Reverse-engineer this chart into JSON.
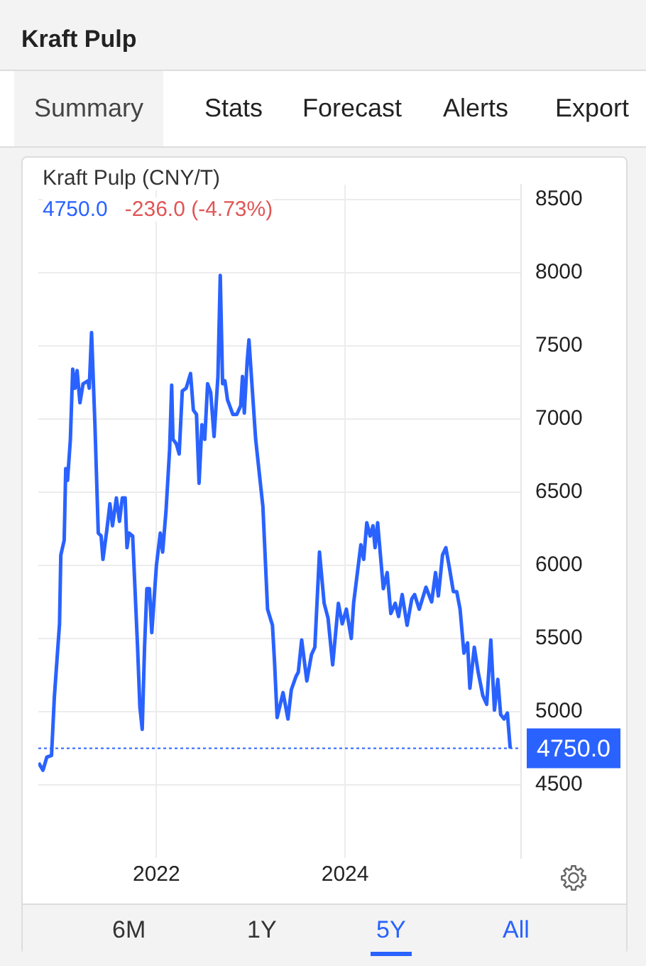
{
  "chart_data": {
    "type": "line",
    "title": "Kraft Pulp (CNY/T)",
    "subtitle": "4750.0 -236.0 (-4.73%)",
    "annotations": [
      "Kraft Pulp",
      "Summary",
      "Stats",
      "Forecast",
      "Alerts",
      "Export",
      "6M",
      "1Y",
      "5Y",
      "All"
    ],
    "series": [
      {
        "color": "#2962ff",
        "x": [
          "2020-10-02",
          "2020-10-19",
          "2020-11-03",
          "2020-11-21",
          "2020-12-02",
          "2020-12-22",
          "2020-12-27",
          "2021-01-09",
          "2021-01-15",
          "2021-01-22",
          "2021-02-02",
          "2021-02-11",
          "2021-02-20",
          "2021-02-28",
          "2021-03-11",
          "2021-03-23",
          "2021-04-11",
          "2021-04-16",
          "2021-04-25",
          "2021-05-08",
          "2021-05-21",
          "2021-06-01",
          "2021-06-08",
          "2021-06-23",
          "2021-07-05",
          "2021-07-15",
          "2021-07-30",
          "2021-08-11",
          "2021-08-22",
          "2021-09-02",
          "2021-09-09",
          "2021-09-17",
          "2021-10-01",
          "2021-10-20",
          "2021-10-29",
          "2021-11-07",
          "2021-11-16",
          "2021-11-25",
          "2021-12-05",
          "2021-12-14",
          "2022-01-01",
          "2022-01-16",
          "2022-01-25",
          "2022-02-07",
          "2022-02-21",
          "2022-03-01",
          "2022-03-06",
          "2022-03-19",
          "2022-03-30",
          "2022-04-11",
          "2022-04-26",
          "2022-05-13",
          "2022-05-24",
          "2022-06-05",
          "2022-06-15",
          "2022-06-26",
          "2022-07-07",
          "2022-07-18",
          "2022-07-30",
          "2022-08-12",
          "2022-08-27",
          "2022-09-05",
          "2022-09-14",
          "2022-09-23",
          "2022-10-03",
          "2022-10-24",
          "2022-11-08",
          "2022-11-23",
          "2022-11-30",
          "2022-12-07",
          "2022-12-18",
          "2022-12-25",
          "2023-01-02",
          "2023-01-20",
          "2023-02-17",
          "2023-03-07",
          "2023-03-26",
          "2023-04-03",
          "2023-04-13",
          "2023-05-06",
          "2023-05-25",
          "2023-06-07",
          "2023-06-25",
          "2023-07-04",
          "2023-07-17",
          "2023-08-06",
          "2023-08-24",
          "2023-09-06",
          "2023-09-24",
          "2023-10-12",
          "2023-10-27",
          "2023-11-14",
          "2023-12-06",
          "2023-12-21",
          "2024-01-06",
          "2024-01-25",
          "2024-02-03",
          "2024-03-02",
          "2024-03-13",
          "2024-03-25",
          "2024-04-07",
          "2024-04-18",
          "2024-04-26",
          "2024-05-06",
          "2024-05-28",
          "2024-06-12",
          "2024-06-26",
          "2024-07-13",
          "2024-07-26",
          "2024-08-09",
          "2024-08-28",
          "2024-09-15",
          "2024-09-26",
          "2024-10-14",
          "2024-11-09",
          "2024-12-01",
          "2024-12-16",
          "2024-12-27",
          "2025-01-12",
          "2025-01-25",
          "2025-02-09",
          "2025-02-23",
          "2025-03-08",
          "2025-03-21",
          "2025-04-05",
          "2025-04-19",
          "2025-04-28",
          "2025-05-15",
          "2025-05-30",
          "2025-06-17",
          "2025-07-02",
          "2025-07-18",
          "2025-08-01",
          "2025-08-14",
          "2025-08-25",
          "2025-09-07",
          "2025-09-20",
          "2025-10-01"
        ],
        "values": [
          4650,
          4600,
          4690,
          4700,
          5100,
          5600,
          6070,
          6170,
          6660,
          6580,
          6860,
          7340,
          7210,
          7330,
          7110,
          7240,
          7260,
          7210,
          7590,
          6960,
          6220,
          6200,
          6040,
          6240,
          6420,
          6270,
          6460,
          6300,
          6460,
          6460,
          6120,
          6220,
          6200,
          5440,
          5030,
          4880,
          5440,
          5840,
          5840,
          5540,
          6000,
          6220,
          6090,
          6370,
          6790,
          7230,
          6860,
          6830,
          6760,
          7190,
          7210,
          7310,
          7060,
          7030,
          6560,
          6960,
          6860,
          7240,
          7180,
          6880,
          7290,
          7980,
          7240,
          7260,
          7130,
          7030,
          7030,
          7090,
          7290,
          7040,
          7390,
          7540,
          7330,
          6860,
          6400,
          5700,
          5590,
          5340,
          4960,
          5130,
          4950,
          5150,
          5240,
          5270,
          5490,
          5210,
          5390,
          5440,
          6090,
          5740,
          5640,
          5320,
          5740,
          5600,
          5700,
          5500,
          5740,
          6140,
          6040,
          6290,
          6200,
          6270,
          6120,
          6290,
          5840,
          5950,
          5670,
          5740,
          5650,
          5800,
          5590,
          5770,
          5800,
          5700,
          5850,
          5750,
          5950,
          5790,
          6070,
          6120,
          5970,
          5820,
          5820,
          5700,
          5400,
          5470,
          5160,
          5440,
          5270,
          5110,
          5050,
          5490,
          5010,
          5220,
          4980,
          4950,
          4990,
          4750
        ]
      }
    ],
    "xlim": [
      "2020-10-01",
      "2025-11-12"
    ],
    "xticks": [
      "2022",
      "2024"
    ],
    "ylim": [
      4000,
      8600
    ],
    "yticks": [
      4500,
      5000,
      5500,
      6000,
      6500,
      7000,
      7500,
      8000,
      8500
    ],
    "ref_lines": [
      {
        "axis": "y",
        "value": 4750,
        "label": "4750.0",
        "color": "#2962ff",
        "line_style": "dotted"
      }
    ],
    "grid": true,
    "legend": false,
    "marker": "none",
    "line_style": "solid"
  }
}
